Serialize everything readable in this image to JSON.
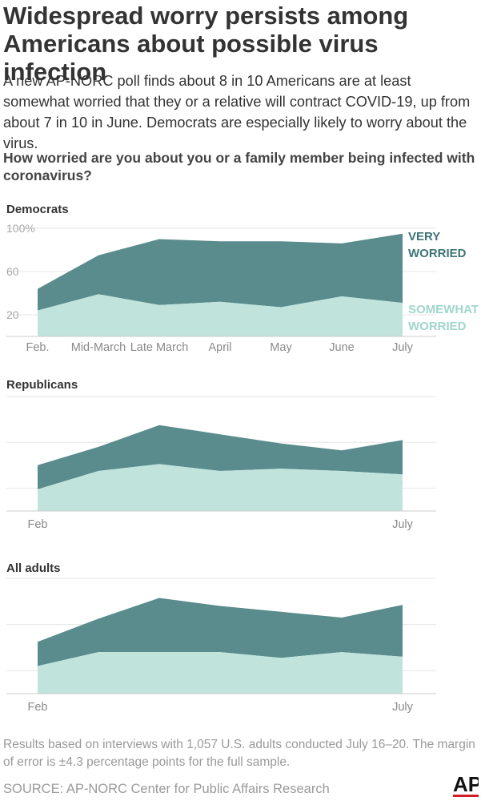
{
  "header": {
    "title": "Widespread worry persists among Americans about possible virus infection",
    "subtitle": "A new AP-NORC poll finds about 8 in 10 Americans are at least somewhat worried that they or a relative will contract COVID-19, up from about 7 in 10 in June. Democrats are especially likely to worry about the virus.",
    "question": "How worried are you about you or a family member being infected with coronavirus?"
  },
  "footer": {
    "note": "Results based on interviews with 1,057 U.S. adults conducted July 16–20. The margin of error is ±4.3 percentage points for the full sample.",
    "source": "SOURCE: AP-NORC Center for Public Affairs Research",
    "logo_text": "AP"
  },
  "colors": {
    "very_worried": "#5a8c8e",
    "somewhat_worried": "#c0e4dc",
    "grid": "#e6e6e6",
    "axis": "#cccccc",
    "very_label": "#3f7476",
    "somewhat_label": "#9fd6cb"
  },
  "chart_data": [
    {
      "type": "area",
      "stacked": true,
      "title": "Democrats",
      "categories": [
        "Feb.",
        "Mid-March",
        "Late March",
        "April",
        "May",
        "June",
        "July"
      ],
      "x_tick_labels": [
        "Feb.",
        "Mid-March",
        "Late March",
        "April",
        "May",
        "June",
        "July"
      ],
      "y_ticks": [
        20,
        60,
        100
      ],
      "y_tick_labels": [
        "20",
        "60",
        "100%"
      ],
      "ylim": [
        0,
        100
      ],
      "grid": true,
      "series": [
        {
          "name": "SOMEWHAT WORRIED",
          "values": [
            24,
            39,
            29,
            32,
            27,
            37,
            31
          ]
        },
        {
          "name": "VERY WORRIED",
          "values": [
            20,
            36,
            61,
            56,
            61,
            49,
            64
          ]
        }
      ]
    },
    {
      "type": "area",
      "stacked": true,
      "title": "Republicans",
      "categories": [
        "Feb",
        "Mid-March",
        "Late March",
        "April",
        "May",
        "June",
        "July"
      ],
      "x_tick_labels": [
        "Feb",
        "",
        "",
        "",
        "",
        "",
        "July"
      ],
      "y_ticks": [
        20,
        60,
        100
      ],
      "y_tick_labels": [
        "",
        "",
        ""
      ],
      "ylim": [
        0,
        100
      ],
      "grid": true,
      "series": [
        {
          "name": "SOMEWHAT WORRIED",
          "values": [
            19,
            35,
            41,
            35,
            37,
            35,
            32
          ]
        },
        {
          "name": "VERY WORRIED",
          "values": [
            21,
            21,
            34,
            32,
            22,
            18,
            30
          ]
        }
      ]
    },
    {
      "type": "area",
      "stacked": true,
      "title": "All adults",
      "categories": [
        "Feb",
        "Mid-March",
        "Late March",
        "April",
        "May",
        "June",
        "July"
      ],
      "x_tick_labels": [
        "Feb",
        "",
        "",
        "",
        "",
        "",
        "July"
      ],
      "y_ticks": [
        20,
        60,
        100
      ],
      "y_tick_labels": [
        "",
        "",
        ""
      ],
      "ylim": [
        0,
        100
      ],
      "grid": true,
      "series": [
        {
          "name": "SOMEWHAT WORRIED",
          "values": [
            24,
            36,
            36,
            36,
            31,
            36,
            32
          ]
        },
        {
          "name": "VERY WORRIED",
          "values": [
            21,
            29,
            47,
            40,
            40,
            30,
            45
          ]
        }
      ]
    }
  ]
}
